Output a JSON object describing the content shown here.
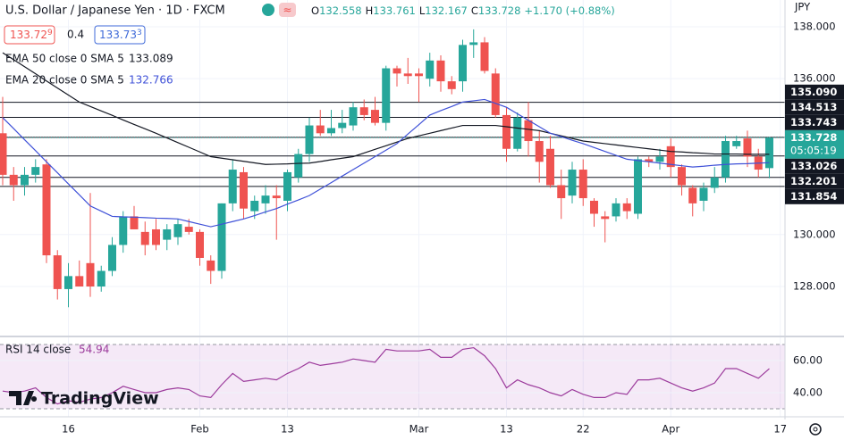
{
  "header": {
    "title": "U.S. Dollar / Japanese Yen · 1D · FXCM",
    "ohlc_keys": [
      "O",
      "H",
      "L",
      "C"
    ],
    "change": "+1.170 (+0.88%)",
    "bid": "133.72",
    "bid_pip": "9",
    "spread": "0.4",
    "ask": "133.73",
    "ask_pip": "3",
    "currency": "JPY",
    "brand": "TradingView"
  },
  "chart_data": [
    {
      "type": "candlestick",
      "xlim": [
        -0.245,
        71.43
      ],
      "ylim": [
        126.11,
        139.03
      ],
      "yticks": [
        {
          "value": 138,
          "label": "138.000"
        },
        {
          "value": 136,
          "label": "136.000"
        },
        {
          "value": 130,
          "label": "130.000"
        },
        {
          "value": 128,
          "label": "128.000"
        }
      ],
      "xticks": [
        {
          "value": 6,
          "label": "16"
        },
        {
          "value": 18,
          "label": "Feb"
        },
        {
          "value": 26,
          "label": "13"
        },
        {
          "value": 38,
          "label": "Mar"
        },
        {
          "value": 46,
          "label": "13"
        },
        {
          "value": 53,
          "label": "22"
        },
        {
          "value": 61,
          "label": "Apr"
        },
        {
          "value": 71,
          "label": "17"
        }
      ],
      "grid": true,
      "up_color": "#26a69a",
      "down_color": "#ef5350",
      "open": [
        133.9,
        132.3,
        131.9,
        132.3,
        132.7,
        129.2,
        127.9,
        128.4,
        128.9,
        128.0,
        128.6,
        129.6,
        130.7,
        130.1,
        130.2,
        129.8,
        129.9,
        130.3,
        130.1,
        129.0,
        128.6,
        131.2,
        132.4,
        130.9,
        131.2,
        131.5,
        131.3,
        132.2,
        133.1,
        134.2,
        133.9,
        134.1,
        134.2,
        134.9,
        134.8,
        134.3,
        136.4,
        136.2,
        136.2,
        136.0,
        136.7,
        135.9,
        135.9,
        137.3,
        137.4,
        136.2,
        134.6,
        133.3,
        134.4,
        133.6,
        133.3,
        131.9,
        131.5,
        132.5,
        131.3,
        130.7,
        130.7,
        131.2,
        130.8,
        132.9,
        132.8,
        133.4,
        132.6,
        131.8,
        131.3,
        131.8,
        132.2,
        133.4,
        133.7,
        133.0,
        132.558
      ],
      "high": [
        135.3,
        132.6,
        132.6,
        132.9,
        132.9,
        129.4,
        128.9,
        129.0,
        131.6,
        128.8,
        129.9,
        130.9,
        131.1,
        130.5,
        130.6,
        130.4,
        130.6,
        130.6,
        130.2,
        129.2,
        131.2,
        132.9,
        132.6,
        131.5,
        131.9,
        131.9,
        132.5,
        133.3,
        134.5,
        134.8,
        134.8,
        134.8,
        135.1,
        135.2,
        135.3,
        136.5,
        136.5,
        136.8,
        136.4,
        137.0,
        136.9,
        136.1,
        137.5,
        137.9,
        137.6,
        136.4,
        134.9,
        134.7,
        135.1,
        134.0,
        133.8,
        132.5,
        132.8,
        132.9,
        131.4,
        130.9,
        131.4,
        131.4,
        133.0,
        133.0,
        133.3,
        133.7,
        132.7,
        131.9,
        132.0,
        132.6,
        133.8,
        133.8,
        134.0,
        133.3,
        133.761
      ],
      "low": [
        131.9,
        131.3,
        131.5,
        132.0,
        128.9,
        127.5,
        127.2,
        128.0,
        127.6,
        127.8,
        128.4,
        129.3,
        130.2,
        129.2,
        129.4,
        129.4,
        129.6,
        130.0,
        128.8,
        128.1,
        128.3,
        130.9,
        130.6,
        130.6,
        130.8,
        129.8,
        130.9,
        132.0,
        132.8,
        133.8,
        133.8,
        133.9,
        134.0,
        134.4,
        134.2,
        134.0,
        135.7,
        135.8,
        135.1,
        135.7,
        135.5,
        135.4,
        135.5,
        136.8,
        136.2,
        134.5,
        132.8,
        133.2,
        133.0,
        132.0,
        131.8,
        130.6,
        131.2,
        131.1,
        130.3,
        129.7,
        130.5,
        130.6,
        130.6,
        132.6,
        132.5,
        132.2,
        131.5,
        130.7,
        130.9,
        131.6,
        132.0,
        133.3,
        132.6,
        132.2,
        132.167
      ],
      "close": [
        132.3,
        131.9,
        132.3,
        132.6,
        129.2,
        127.9,
        128.4,
        128.0,
        128.0,
        128.6,
        129.6,
        130.7,
        130.2,
        129.6,
        129.6,
        130.2,
        130.4,
        130.1,
        129.1,
        128.6,
        131.2,
        132.5,
        131.0,
        131.3,
        131.5,
        131.4,
        132.4,
        133.1,
        134.2,
        133.9,
        134.1,
        134.3,
        134.9,
        134.6,
        134.3,
        136.4,
        136.2,
        136.1,
        136.1,
        136.7,
        135.9,
        135.6,
        137.3,
        137.4,
        136.3,
        134.6,
        133.3,
        134.5,
        133.6,
        132.8,
        131.9,
        131.4,
        132.5,
        131.4,
        130.8,
        130.6,
        131.2,
        130.9,
        132.9,
        132.8,
        133.0,
        132.6,
        131.9,
        131.2,
        131.8,
        132.2,
        133.6,
        133.6,
        133.0,
        132.5,
        133.728
      ],
      "series": [
        {
          "name": "EMA 50 close 0 SMA 5",
          "color": "#131722",
          "values": [
            137.0,
            136.73,
            136.46,
            136.19,
            135.91,
            135.64,
            135.37,
            135.1,
            134.93,
            134.76,
            134.59,
            134.41,
            134.24,
            134.07,
            133.9,
            133.72,
            133.54,
            133.36,
            133.18,
            133.0,
            132.94,
            132.88,
            132.82,
            132.76,
            132.7,
            132.71,
            132.72,
            132.74,
            132.75,
            132.81,
            132.88,
            132.94,
            133.0,
            133.14,
            133.28,
            133.42,
            133.56,
            133.7,
            133.8,
            133.9,
            134.0,
            134.1,
            134.2,
            134.2,
            134.2,
            134.2,
            134.15,
            134.1,
            134.05,
            134.0,
            133.9,
            133.8,
            133.7,
            133.6,
            133.55,
            133.5,
            133.45,
            133.4,
            133.35,
            133.3,
            133.25,
            133.2,
            133.18,
            133.15,
            133.13,
            133.1,
            133.1,
            133.1,
            133.09,
            133.09,
            133.089
          ]
        },
        {
          "name": "EMA 20 close 0 SMA 5",
          "color": "#3f51d8",
          "values": [
            134.5,
            134.08,
            133.65,
            133.23,
            132.8,
            132.38,
            131.95,
            131.53,
            131.1,
            130.9,
            130.7,
            130.68,
            130.67,
            130.65,
            130.63,
            130.62,
            130.6,
            130.5,
            130.4,
            130.3,
            130.4,
            130.5,
            130.6,
            130.73,
            130.87,
            131.0,
            131.17,
            131.33,
            131.5,
            131.75,
            132.0,
            132.25,
            132.5,
            132.75,
            133.0,
            133.25,
            133.5,
            133.87,
            134.23,
            134.6,
            134.77,
            134.93,
            135.1,
            135.15,
            135.2,
            135.05,
            134.9,
            134.65,
            134.4,
            134.15,
            133.9,
            133.77,
            133.63,
            133.5,
            133.35,
            133.2,
            133.05,
            132.9,
            132.85,
            132.8,
            132.75,
            132.7,
            132.65,
            132.6,
            132.63,
            132.67,
            132.7,
            132.72,
            132.73,
            132.75,
            132.766
          ]
        }
      ],
      "levels": [
        {
          "value": 135.09,
          "label": "135.090"
        },
        134.513,
        133.743,
        133.026,
        132.201,
        131.854
      ],
      "level_color": "#131722",
      "countdown": "05:05:19"
    },
    {
      "type": "line",
      "xlim": [
        -0.245,
        71.43
      ],
      "ylim": [
        27.78,
        74.44
      ],
      "yticks": [
        {
          "value": 60,
          "label": "60.00"
        },
        {
          "value": 40,
          "label": "40.00"
        }
      ],
      "band": [
        30,
        70
      ],
      "band_color": "#9c27b0",
      "series": [
        {
          "name": "RSI 14 close",
          "color": "#9c3b9c",
          "values": [
            41,
            40,
            41,
            43,
            37,
            33,
            35,
            34,
            36,
            37,
            40,
            44,
            42,
            40,
            40,
            42,
            43,
            42,
            38,
            37,
            45,
            52,
            47,
            48,
            49,
            48,
            52,
            55,
            59,
            57,
            58,
            59,
            61,
            60,
            59,
            67,
            66,
            66,
            66,
            67,
            62,
            62,
            67,
            68,
            63,
            55,
            43,
            48,
            45,
            43,
            40,
            38,
            42,
            39,
            37,
            37,
            40,
            39,
            48,
            48,
            49,
            46,
            43,
            41,
            43,
            46,
            55,
            55,
            52,
            49,
            54.94
          ]
        }
      ]
    }
  ]
}
